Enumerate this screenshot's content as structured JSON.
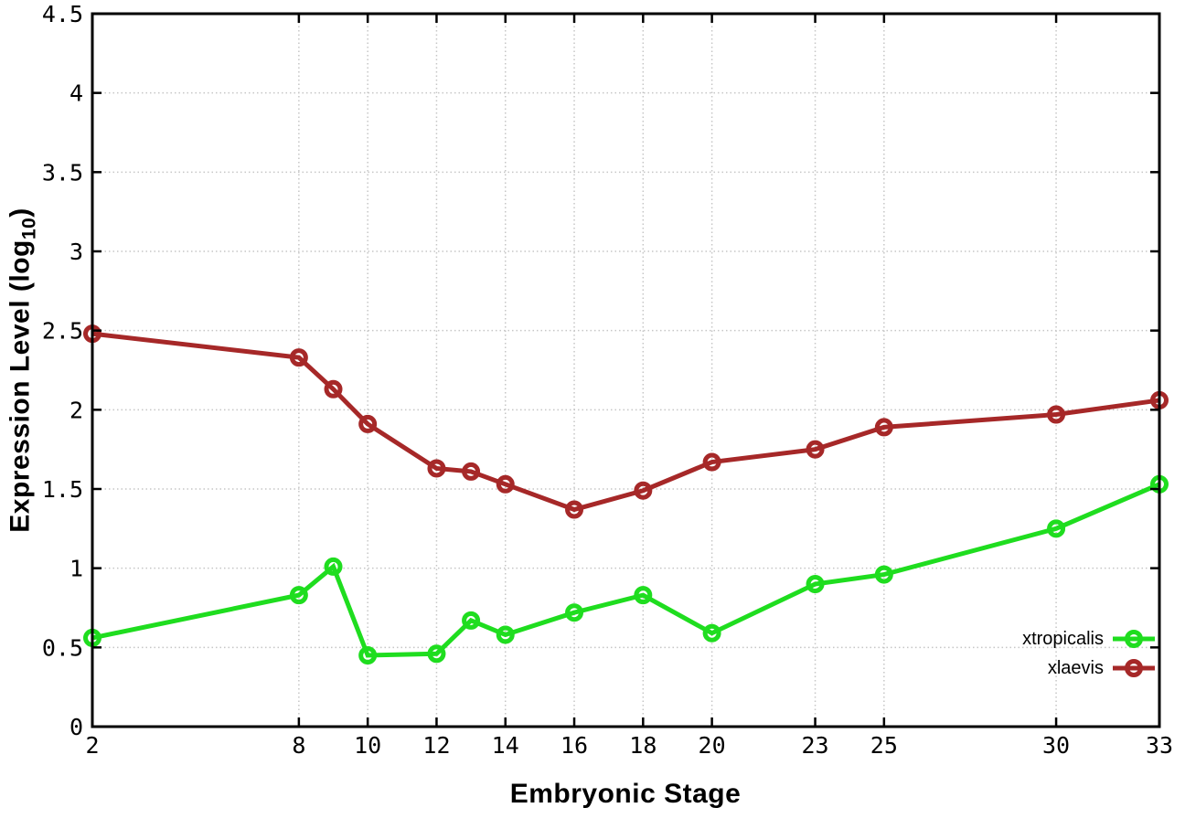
{
  "chart_data": {
    "type": "line",
    "title": "",
    "xlabel": "Embryonic Stage",
    "ylabel": {
      "pre": "Expression Level (log",
      "sub": "10",
      "post": ")"
    },
    "xlim": [
      2,
      33
    ],
    "ylim": [
      0,
      4.5
    ],
    "grid": true,
    "legend_position": "inside bottom-right",
    "xticks": [
      "2",
      "8",
      "10",
      "12",
      "14",
      "16",
      "18",
      "20",
      "23",
      "25",
      "30",
      "33"
    ],
    "yticks": [
      "0",
      "0.5",
      "1",
      "1.5",
      "2",
      "2.5",
      "3",
      "3.5",
      "4",
      "4.5"
    ],
    "x": [
      2,
      8,
      9,
      10,
      12,
      13,
      14,
      16,
      18,
      20,
      23,
      25,
      30,
      33
    ],
    "series": [
      {
        "name": "xtropicalis",
        "color": "#1fdd1f",
        "marker": "open-circle",
        "values": [
          0.56,
          0.83,
          1.01,
          0.45,
          0.46,
          0.67,
          0.58,
          0.72,
          0.83,
          0.59,
          0.9,
          0.96,
          1.25,
          1.53
        ]
      },
      {
        "name": "xlaevis",
        "color": "#a62828",
        "marker": "open-circle",
        "values": [
          2.48,
          2.33,
          2.13,
          1.91,
          1.63,
          1.61,
          1.53,
          1.37,
          1.49,
          1.67,
          1.75,
          1.89,
          1.97,
          2.06
        ]
      }
    ]
  }
}
